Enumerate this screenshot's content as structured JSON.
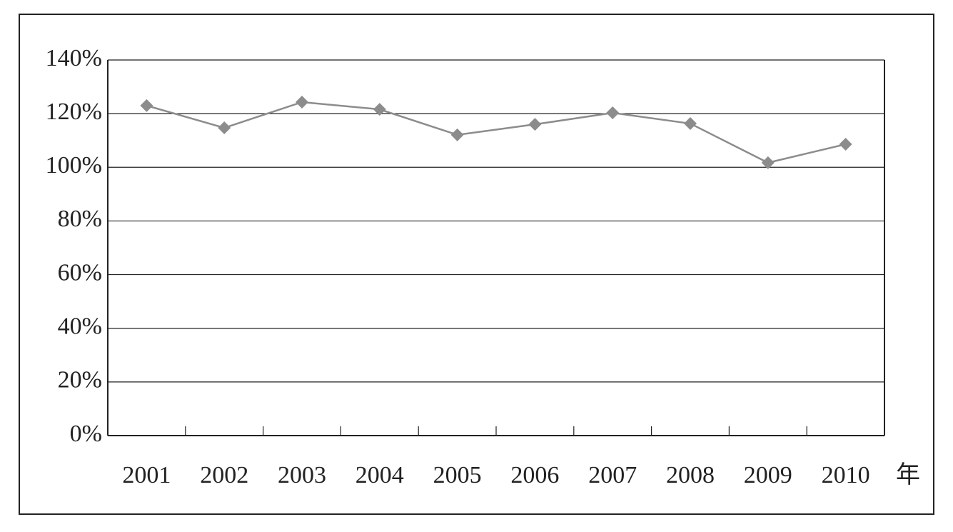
{
  "chart_data": {
    "type": "line",
    "categories": [
      "2001",
      "2002",
      "2003",
      "2004",
      "2005",
      "2006",
      "2007",
      "2008",
      "2009",
      "2010"
    ],
    "x_label": "年",
    "values": [
      123,
      114.7,
      124.3,
      121.6,
      112.1,
      116,
      120.3,
      116.3,
      101.7,
      108.6
    ],
    "color": "#8c8c8c",
    "ylim": [
      0,
      140
    ],
    "yticks": [
      {
        "value": 0,
        "label": "0%"
      },
      {
        "value": 20,
        "label": "20%"
      },
      {
        "value": 40,
        "label": "40%"
      },
      {
        "value": 60,
        "label": "60%"
      },
      {
        "value": 80,
        "label": "80%"
      },
      {
        "value": 100,
        "label": "100%"
      },
      {
        "value": 120,
        "label": "120%"
      },
      {
        "value": 140,
        "label": "140%"
      }
    ],
    "grid": true
  }
}
